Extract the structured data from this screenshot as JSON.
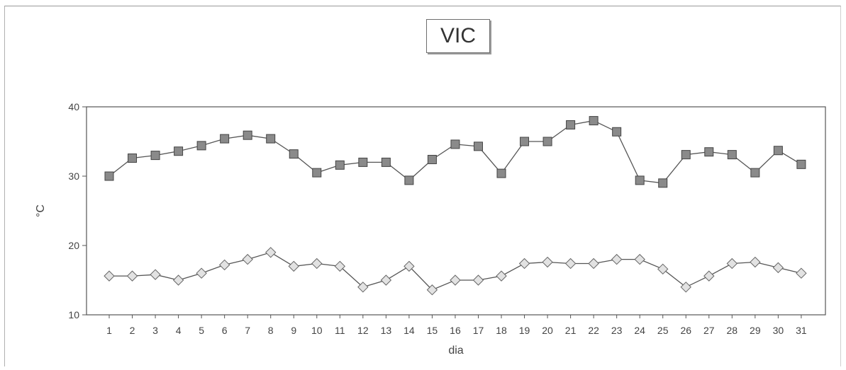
{
  "chart_data": {
    "type": "line",
    "title": "VIC",
    "xlabel": "dia",
    "ylabel": "°C",
    "x": [
      1,
      2,
      3,
      4,
      5,
      6,
      7,
      8,
      9,
      10,
      11,
      12,
      13,
      14,
      15,
      16,
      17,
      18,
      19,
      20,
      21,
      22,
      23,
      24,
      25,
      26,
      27,
      28,
      29,
      30,
      31
    ],
    "ylim": [
      10,
      40
    ],
    "yticks": [
      10,
      20,
      30,
      40
    ],
    "grid": false,
    "series": [
      {
        "marker": "square",
        "color": "#555555",
        "values": [
          30.0,
          32.6,
          33.0,
          33.6,
          34.4,
          35.4,
          35.9,
          35.4,
          33.2,
          30.5,
          31.6,
          32.0,
          32.0,
          29.4,
          32.4,
          34.6,
          34.3,
          30.4,
          35.0,
          35.0,
          37.4,
          38.0,
          36.4,
          29.4,
          29.0,
          33.1,
          33.5,
          33.1,
          30.5,
          33.7,
          31.7
        ]
      },
      {
        "marker": "diamond",
        "color": "#777777",
        "values": [
          15.6,
          15.6,
          15.8,
          15.0,
          16.0,
          17.2,
          18.0,
          19.0,
          17.0,
          17.4,
          17.0,
          14.0,
          15.0,
          17.0,
          13.6,
          15.0,
          15.0,
          15.6,
          17.4,
          17.6,
          17.4,
          17.4,
          18.0,
          18.0,
          16.6,
          14.0,
          15.6,
          17.4,
          17.6,
          16.8,
          16.0
        ]
      }
    ]
  }
}
